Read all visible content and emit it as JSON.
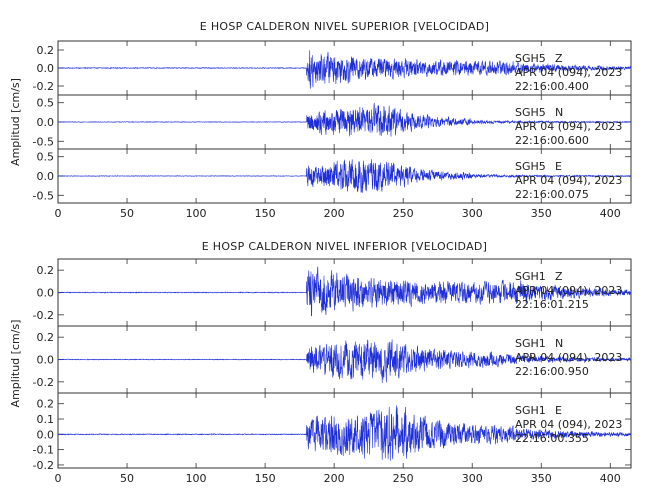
{
  "chart_data": [
    {
      "type": "line",
      "title": "E HOSP CALDERON NIVEL SUPERIOR [VELOCIDAD]",
      "ylabel": "Amplitud [cm/s]",
      "xlim": [
        0,
        415
      ],
      "xticks": [
        0,
        50,
        100,
        150,
        200,
        250,
        300,
        350,
        400
      ],
      "grid": false,
      "panels": [
        {
          "station": "SGH5",
          "component": "Z",
          "date_line": "APR 04 (094), 2023",
          "time_line": "22:16:00.400",
          "yticks": [
            0.2,
            0.0,
            -0.2
          ],
          "ylim": [
            -0.3,
            0.3
          ],
          "envelope": {
            "onset": 180,
            "peak_time": 182,
            "peak": 0.28,
            "coda_level": 0.08,
            "decay_end": 330,
            "noise": 0.006
          }
        },
        {
          "station": "SGH5",
          "component": "N",
          "date_line": "APR 04 (094), 2023",
          "time_line": "22:16:00.600",
          "yticks": [
            0.5,
            0.0,
            -0.5
          ],
          "ylim": [
            -0.7,
            0.7
          ],
          "envelope": {
            "onset": 180,
            "peak_time": 235,
            "peak": 0.6,
            "coda_level": 0.05,
            "decay_end": 300,
            "noise": 0.01
          }
        },
        {
          "station": "SGH5",
          "component": "E",
          "date_line": "APR 04 (094), 2023",
          "time_line": "22:16:00.075",
          "yticks": [
            0.5,
            0.0,
            -0.5
          ],
          "ylim": [
            -0.7,
            0.7
          ],
          "envelope": {
            "onset": 180,
            "peak_time": 232,
            "peak": 0.62,
            "coda_level": 0.05,
            "decay_end": 300,
            "noise": 0.01
          }
        }
      ]
    },
    {
      "type": "line",
      "title": "E HOSP CALDERON NIVEL INFERIOR [VELOCIDAD]",
      "ylabel": "Amplitud [cm/s]",
      "xlim": [
        0,
        415
      ],
      "xticks": [
        0,
        50,
        100,
        150,
        200,
        250,
        300,
        350,
        400
      ],
      "grid": false,
      "panels": [
        {
          "station": "SGH1",
          "component": "Z",
          "date_line": "APR 04 (094), 2023",
          "time_line": "22:16:01.215",
          "yticks": [
            0.2,
            0.0,
            -0.2
          ],
          "ylim": [
            -0.3,
            0.3
          ],
          "envelope": {
            "onset": 180,
            "peak_time": 182,
            "peak": 0.28,
            "coda_level": 0.1,
            "decay_end": 340,
            "noise": 0.005
          }
        },
        {
          "station": "SGH1",
          "component": "N",
          "date_line": "APR 04 (094), 2023",
          "time_line": "22:16:00.950",
          "yticks": [
            0.2,
            0.0,
            -0.2
          ],
          "ylim": [
            -0.3,
            0.3
          ],
          "envelope": {
            "onset": 180,
            "peak_time": 235,
            "peak": 0.26,
            "coda_level": 0.06,
            "decay_end": 320,
            "noise": 0.004
          }
        },
        {
          "station": "SGH1",
          "component": "E",
          "date_line": "APR 04 (094), 2023",
          "time_line": "22:16:00.355",
          "yticks": [
            0.2,
            0.1,
            0.0,
            -0.1,
            -0.2
          ],
          "ylim": [
            -0.22,
            0.27
          ],
          "envelope": {
            "onset": 180,
            "peak_time": 245,
            "peak": 0.24,
            "coda_level": 0.05,
            "decay_end": 330,
            "noise": 0.004
          }
        }
      ]
    }
  ]
}
